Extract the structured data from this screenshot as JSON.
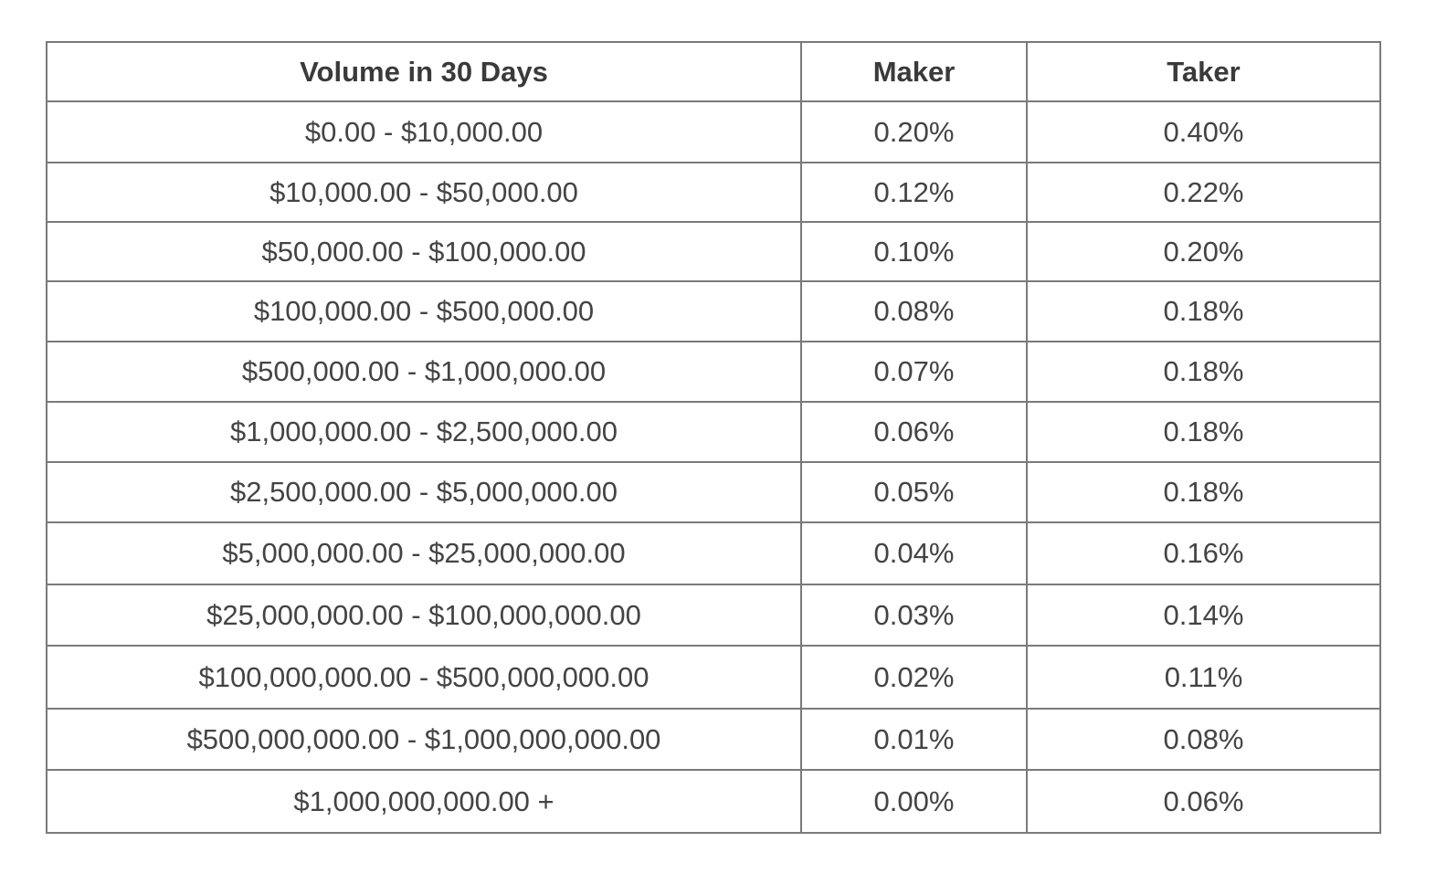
{
  "table": {
    "headers": [
      "Volume in 30 Days",
      "Maker",
      "Taker"
    ],
    "rows": [
      {
        "volume": "$0.00 - $10,000.00",
        "maker": "0.20%",
        "taker": "0.40%"
      },
      {
        "volume": "$10,000.00 - $50,000.00",
        "maker": "0.12%",
        "taker": "0.22%"
      },
      {
        "volume": "$50,000.00 - $100,000.00",
        "maker": "0.10%",
        "taker": "0.20%"
      },
      {
        "volume": "$100,000.00 - $500,000.00",
        "maker": "0.08%",
        "taker": "0.18%"
      },
      {
        "volume": "$500,000.00 - $1,000,000.00",
        "maker": "0.07%",
        "taker": "0.18%"
      },
      {
        "volume": "$1,000,000.00 - $2,500,000.00",
        "maker": "0.06%",
        "taker": "0.18%"
      },
      {
        "volume": "$2,500,000.00 - $5,000,000.00",
        "maker": "0.05%",
        "taker": "0.18%"
      },
      {
        "volume": "$5,000,000.00 - $25,000,000.00",
        "maker": "0.04%",
        "taker": "0.16%"
      },
      {
        "volume": "$25,000,000.00 - $100,000,000.00",
        "maker": "0.03%",
        "taker": "0.14%"
      },
      {
        "volume": "$100,000,000.00 - $500,000,000.00",
        "maker": "0.02%",
        "taker": "0.11%"
      },
      {
        "volume": "$500,000,000.00 - $1,000,000,000.00",
        "maker": "0.01%",
        "taker": "0.08%"
      },
      {
        "volume": "$1,000,000,000.00 +",
        "maker": "0.00%",
        "taker": "0.06%"
      }
    ]
  },
  "colors": {
    "border": "#7a7a7a",
    "text": "#444444",
    "header_text": "#3a3a3a",
    "background": "#ffffff"
  }
}
